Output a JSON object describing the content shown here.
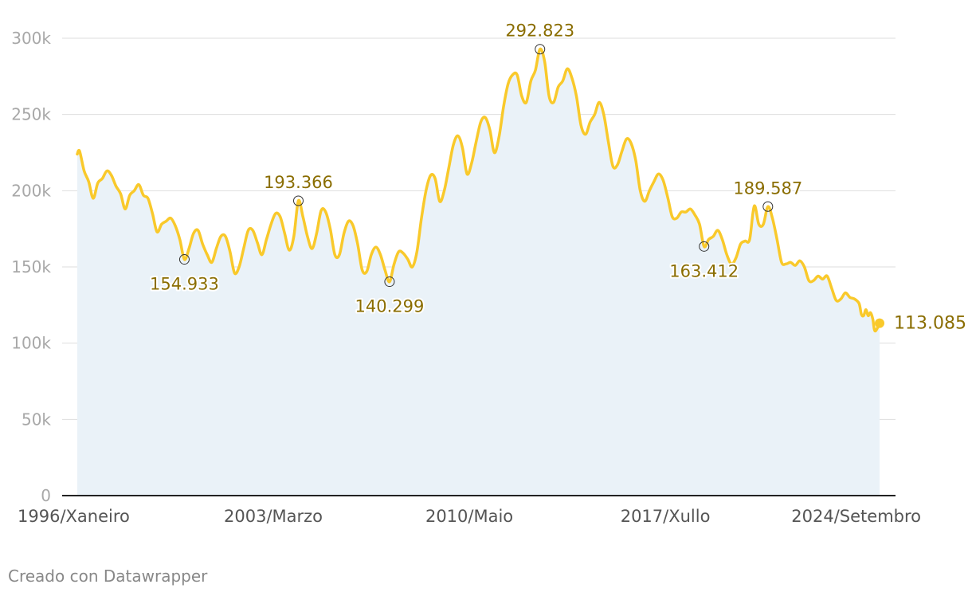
{
  "credit": "Creado con Datawrapper",
  "colors": {
    "line": "#f9c92b",
    "area": "#eaf2f8",
    "grid": "#dedede",
    "axis": "#222222",
    "annotation": "#8a6d00"
  },
  "chart_data": {
    "type": "area",
    "title": "",
    "xlabel": "",
    "ylabel": "",
    "ylim": [
      0,
      300000
    ],
    "grid": true,
    "y_ticks": [
      {
        "value": 0,
        "label": "0"
      },
      {
        "value": 50000,
        "label": "50k"
      },
      {
        "value": 100000,
        "label": "100k"
      },
      {
        "value": 150000,
        "label": "150k"
      },
      {
        "value": 200000,
        "label": "200k"
      },
      {
        "value": 250000,
        "label": "250k"
      },
      {
        "value": 300000,
        "label": "300k"
      }
    ],
    "x_range": [
      "1996-01",
      "2024-11"
    ],
    "x_ticks": [
      {
        "date": "1996-01",
        "label": "1996/Xaneiro"
      },
      {
        "date": "2003-03",
        "label": "2003/Marzo"
      },
      {
        "date": "2010-05",
        "label": "2010/Maio"
      },
      {
        "date": "2017-07",
        "label": "2017/Xullo"
      },
      {
        "date": "2024-09",
        "label": "2024/Setembro"
      }
    ],
    "series": [
      {
        "values": [
          [
            "1996-01",
            224000
          ],
          [
            "1996-02",
            226000
          ],
          [
            "1996-04",
            213000
          ],
          [
            "1996-06",
            206000
          ],
          [
            "1996-08",
            195000
          ],
          [
            "1996-10",
            205000
          ],
          [
            "1996-12",
            208000
          ],
          [
            "1997-02",
            213000
          ],
          [
            "1997-04",
            210000
          ],
          [
            "1997-06",
            203000
          ],
          [
            "1997-08",
            198000
          ],
          [
            "1997-10",
            188000
          ],
          [
            "1997-12",
            197000
          ],
          [
            "1998-02",
            200000
          ],
          [
            "1998-04",
            204000
          ],
          [
            "1998-06",
            197000
          ],
          [
            "1998-08",
            195000
          ],
          [
            "1998-10",
            185000
          ],
          [
            "1998-12",
            173000
          ],
          [
            "1999-02",
            178000
          ],
          [
            "1999-04",
            180000
          ],
          [
            "1999-06",
            182000
          ],
          [
            "1999-08",
            177000
          ],
          [
            "1999-10",
            168000
          ],
          [
            "1999-12",
            154933
          ],
          [
            "2000-02",
            162000
          ],
          [
            "2000-04",
            172000
          ],
          [
            "2000-06",
            174000
          ],
          [
            "2000-08",
            165000
          ],
          [
            "2000-10",
            158000
          ],
          [
            "2000-12",
            153000
          ],
          [
            "2001-02",
            162000
          ],
          [
            "2001-04",
            170000
          ],
          [
            "2001-06",
            170000
          ],
          [
            "2001-08",
            160000
          ],
          [
            "2001-10",
            146000
          ],
          [
            "2001-12",
            150000
          ],
          [
            "2002-02",
            162000
          ],
          [
            "2002-04",
            174000
          ],
          [
            "2002-06",
            174000
          ],
          [
            "2002-08",
            166000
          ],
          [
            "2002-10",
            158000
          ],
          [
            "2002-12",
            168000
          ],
          [
            "2003-02",
            178000
          ],
          [
            "2003-04",
            185000
          ],
          [
            "2003-06",
            183000
          ],
          [
            "2003-08",
            172000
          ],
          [
            "2003-10",
            161000
          ],
          [
            "2003-12",
            170000
          ],
          [
            "2004-02",
            193366
          ],
          [
            "2004-04",
            183000
          ],
          [
            "2004-06",
            170000
          ],
          [
            "2004-08",
            162000
          ],
          [
            "2004-10",
            172000
          ],
          [
            "2004-12",
            187000
          ],
          [
            "2005-02",
            186000
          ],
          [
            "2005-04",
            175000
          ],
          [
            "2005-06",
            158000
          ],
          [
            "2005-08",
            158000
          ],
          [
            "2005-10",
            172000
          ],
          [
            "2005-12",
            180000
          ],
          [
            "2006-02",
            177000
          ],
          [
            "2006-04",
            165000
          ],
          [
            "2006-06",
            148000
          ],
          [
            "2006-08",
            147000
          ],
          [
            "2006-10",
            158000
          ],
          [
            "2006-12",
            163000
          ],
          [
            "2007-02",
            158000
          ],
          [
            "2007-04",
            148000
          ],
          [
            "2007-06",
            140299
          ],
          [
            "2007-08",
            152000
          ],
          [
            "2007-10",
            160000
          ],
          [
            "2007-12",
            159000
          ],
          [
            "2008-02",
            155000
          ],
          [
            "2008-04",
            150000
          ],
          [
            "2008-06",
            160000
          ],
          [
            "2008-08",
            182000
          ],
          [
            "2008-10",
            200000
          ],
          [
            "2008-12",
            210000
          ],
          [
            "2009-02",
            208000
          ],
          [
            "2009-04",
            193000
          ],
          [
            "2009-06",
            200000
          ],
          [
            "2009-08",
            215000
          ],
          [
            "2009-10",
            230000
          ],
          [
            "2009-12",
            236000
          ],
          [
            "2010-02",
            228000
          ],
          [
            "2010-04",
            211000
          ],
          [
            "2010-06",
            218000
          ],
          [
            "2010-08",
            232000
          ],
          [
            "2010-10",
            245000
          ],
          [
            "2010-12",
            248000
          ],
          [
            "2011-02",
            240000
          ],
          [
            "2011-04",
            225000
          ],
          [
            "2011-06",
            235000
          ],
          [
            "2011-08",
            255000
          ],
          [
            "2011-10",
            270000
          ],
          [
            "2011-12",
            276000
          ],
          [
            "2012-02",
            276000
          ],
          [
            "2012-04",
            262000
          ],
          [
            "2012-06",
            258000
          ],
          [
            "2012-08",
            272000
          ],
          [
            "2012-10",
            279000
          ],
          [
            "2012-12",
            292823
          ],
          [
            "2013-02",
            285000
          ],
          [
            "2013-04",
            262000
          ],
          [
            "2013-06",
            258000
          ],
          [
            "2013-08",
            268000
          ],
          [
            "2013-10",
            272000
          ],
          [
            "2013-12",
            280000
          ],
          [
            "2014-02",
            274000
          ],
          [
            "2014-04",
            262000
          ],
          [
            "2014-06",
            243000
          ],
          [
            "2014-08",
            237000
          ],
          [
            "2014-10",
            245000
          ],
          [
            "2014-12",
            250000
          ],
          [
            "2015-02",
            258000
          ],
          [
            "2015-04",
            250000
          ],
          [
            "2015-06",
            232000
          ],
          [
            "2015-08",
            216000
          ],
          [
            "2015-10",
            217000
          ],
          [
            "2015-12",
            226000
          ],
          [
            "2016-02",
            234000
          ],
          [
            "2016-04",
            231000
          ],
          [
            "2016-06",
            220000
          ],
          [
            "2016-08",
            200000
          ],
          [
            "2016-10",
            193000
          ],
          [
            "2016-12",
            200000
          ],
          [
            "2017-02",
            206000
          ],
          [
            "2017-04",
            211000
          ],
          [
            "2017-06",
            207000
          ],
          [
            "2017-08",
            196000
          ],
          [
            "2017-10",
            183000
          ],
          [
            "2017-12",
            182000
          ],
          [
            "2018-02",
            186000
          ],
          [
            "2018-04",
            186000
          ],
          [
            "2018-06",
            188000
          ],
          [
            "2018-08",
            184000
          ],
          [
            "2018-10",
            178000
          ],
          [
            "2018-12",
            163412
          ],
          [
            "2019-02",
            168000
          ],
          [
            "2019-04",
            170000
          ],
          [
            "2019-06",
            174000
          ],
          [
            "2019-08",
            168000
          ],
          [
            "2019-10",
            158000
          ],
          [
            "2019-12",
            152000
          ],
          [
            "2020-02",
            156000
          ],
          [
            "2020-04",
            165000
          ],
          [
            "2020-06",
            167000
          ],
          [
            "2020-08",
            168000
          ],
          [
            "2020-10",
            190000
          ],
          [
            "2020-12",
            178000
          ],
          [
            "2021-02",
            178000
          ],
          [
            "2021-04",
            189587
          ],
          [
            "2021-06",
            182000
          ],
          [
            "2021-08",
            168000
          ],
          [
            "2021-10",
            153000
          ],
          [
            "2021-12",
            152000
          ],
          [
            "2022-02",
            153000
          ],
          [
            "2022-04",
            151000
          ],
          [
            "2022-06",
            154000
          ],
          [
            "2022-08",
            150000
          ],
          [
            "2022-10",
            141000
          ],
          [
            "2022-12",
            141000
          ],
          [
            "2023-02",
            144000
          ],
          [
            "2023-04",
            142000
          ],
          [
            "2023-06",
            144000
          ],
          [
            "2023-08",
            136000
          ],
          [
            "2023-10",
            128000
          ],
          [
            "2023-12",
            129000
          ],
          [
            "2024-02",
            133000
          ],
          [
            "2024-04",
            130000
          ],
          [
            "2024-06",
            129000
          ],
          [
            "2024-08",
            126000
          ],
          [
            "2024-09",
            119000
          ],
          [
            "2024-10",
            118000
          ],
          [
            "2024-11",
            122000
          ],
          [
            "2024-12",
            118000
          ],
          [
            "2025-01",
            120000
          ],
          [
            "2025-02",
            116000
          ],
          [
            "2025-03",
            108000
          ],
          [
            "2025-05",
            113085
          ]
        ]
      }
    ],
    "annotations": [
      {
        "date": "1999-12",
        "value": 154933,
        "label": "154.933",
        "position": "below"
      },
      {
        "date": "2004-02",
        "value": 193366,
        "label": "193.366",
        "position": "above"
      },
      {
        "date": "2007-06",
        "value": 140299,
        "label": "140.299",
        "position": "below"
      },
      {
        "date": "2012-12",
        "value": 292823,
        "label": "292.823",
        "position": "above"
      },
      {
        "date": "2018-12",
        "value": 163412,
        "label": "163.412",
        "position": "below"
      },
      {
        "date": "2021-04",
        "value": 189587,
        "label": "189.587",
        "position": "above"
      }
    ],
    "last_point": {
      "date": "2025-05",
      "value": 113085,
      "label": "113.085"
    }
  }
}
